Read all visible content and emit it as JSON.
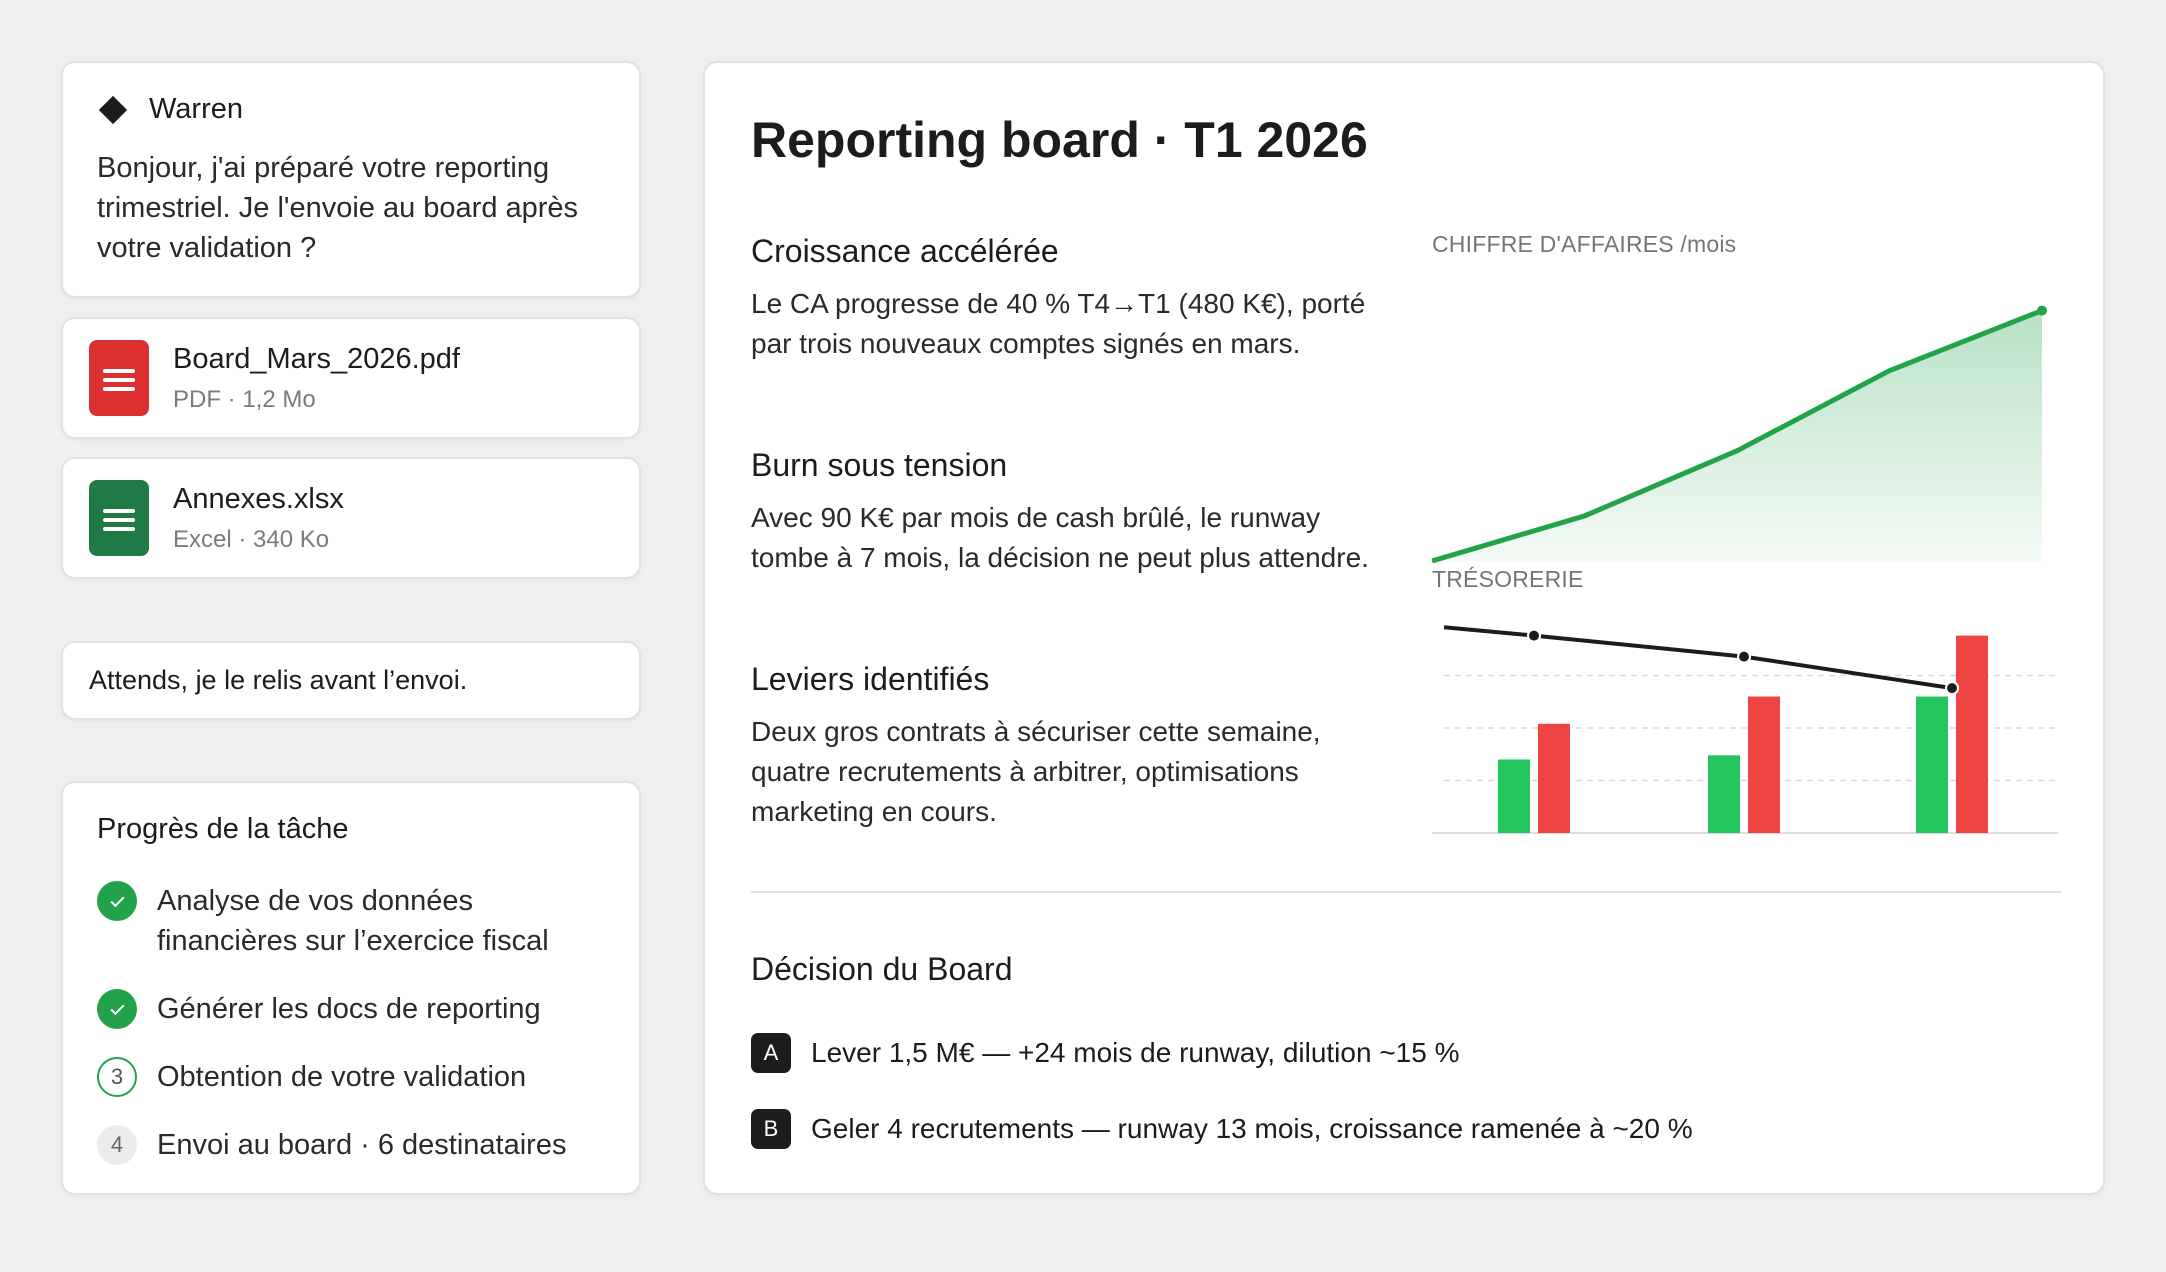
{
  "chat": {
    "assistant_name": "Warren",
    "assistant_message": "Bonjour, j'ai préparé votre reporting trimestriel. Je l'envoie au board après votre validation ?",
    "user_reply": "Attends, je le relis avant l’envoi."
  },
  "attachments": [
    {
      "name": "Board_Mars_2026.pdf",
      "meta": "PDF · 1,2 Mo",
      "icon": "pdf-file-icon",
      "color": "#dc2f2f"
    },
    {
      "name": "Annexes.xlsx",
      "meta": "Excel · 340 Ko",
      "icon": "spreadsheet-file-icon",
      "color": "#1f7a45"
    }
  ],
  "progress": {
    "title": "Progrès de la tâche",
    "steps": [
      {
        "label": "Analyse de vos données financières sur l’exercice fiscal",
        "status": "done",
        "marker": ""
      },
      {
        "label": "Générer les docs de reporting",
        "status": "done",
        "marker": ""
      },
      {
        "label": "Obtention de votre validation",
        "status": "current",
        "marker": "3"
      },
      {
        "label": "Envoi au board · 6 destinataires",
        "status": "pending",
        "marker": "4"
      }
    ]
  },
  "report": {
    "title": "Reporting board · T1 2026",
    "sections": [
      {
        "heading": "Croissance accélérée",
        "body": "Le CA progresse de 40 % T4→T1 (480 K€), porté par trois nouveaux comptes signés en mars."
      },
      {
        "heading": "Burn sous tension",
        "body": "Avec 90 K€ par mois de cash brûlé, le runway tombe à 7 mois, la décision ne peut plus attendre."
      },
      {
        "heading": "Leviers identifiés",
        "body": "Deux gros contrats à sécuriser cette semaine, quatre recrutements à arbitrer, optimisations marketing en cours."
      }
    ],
    "decision": {
      "title": "Décision du Board",
      "options": [
        {
          "key": "A",
          "label": "Lever 1,5 M€ — +24 mois de runway, dilution ~15 %"
        },
        {
          "key": "B",
          "label": "Geler 4 recrutements — runway 13 mois, croissance ramenée à ~20 %"
        }
      ]
    }
  },
  "chart_data": [
    {
      "type": "area",
      "title": "CHIFFRE D'AFFAIRES /mois",
      "x": [
        1,
        2,
        3,
        4,
        5
      ],
      "values": [
        0,
        18,
        44,
        76,
        100
      ],
      "ylim": [
        0,
        115
      ],
      "grid": false,
      "color": "#22a34a"
    },
    {
      "type": "bar",
      "title": "TRÉSORERIE",
      "categories": [
        "1",
        "2",
        "3"
      ],
      "series": [
        {
          "values": [
            35,
            37,
            65
          ],
          "color": "#22c55e"
        },
        {
          "values": [
            52,
            65,
            94
          ],
          "color": "#ef4444"
        }
      ],
      "line": {
        "values": [
          94,
          84,
          69
        ],
        "color": "#1c1c1e"
      },
      "ylim": [
        0,
        100
      ],
      "grid": true
    }
  ]
}
